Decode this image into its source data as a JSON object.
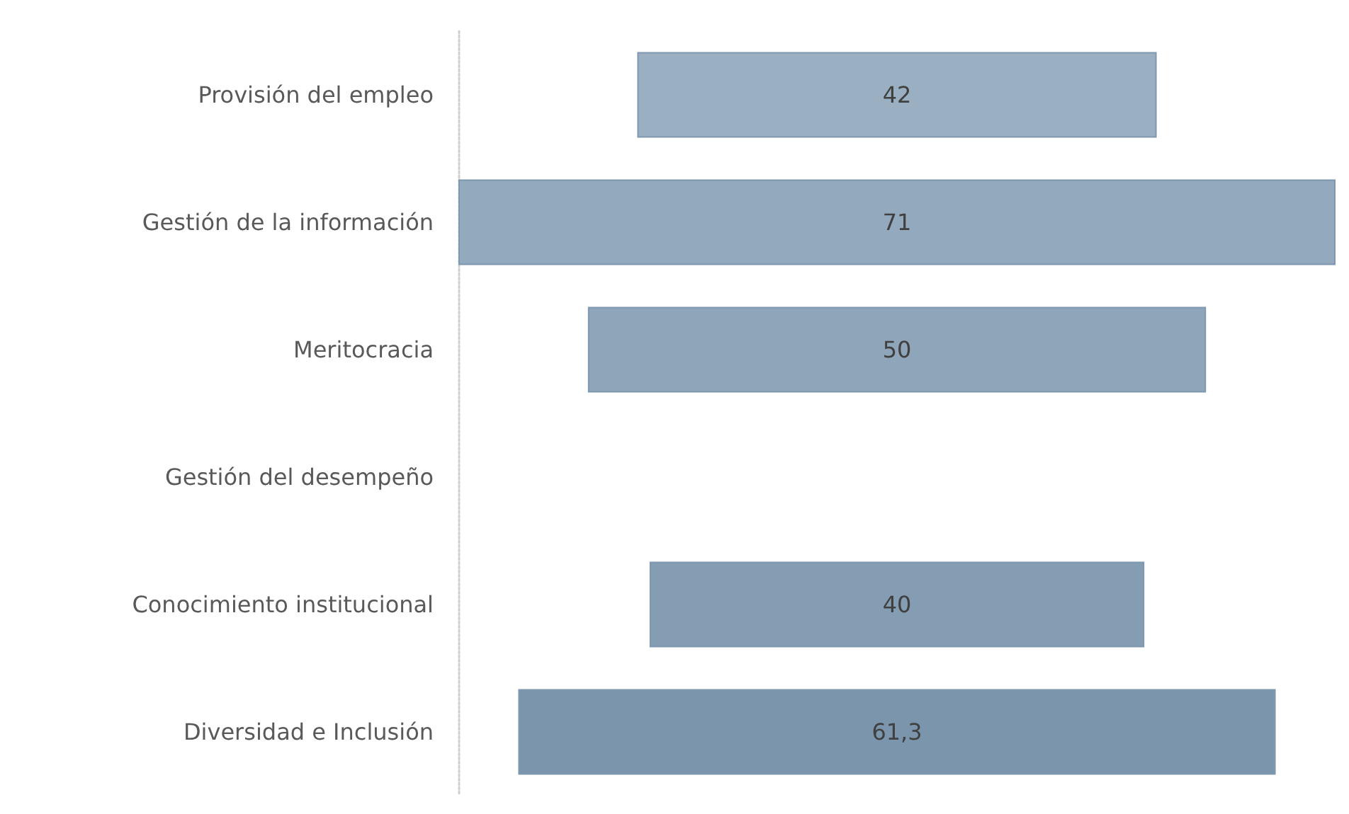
{
  "chart_data": {
    "type": "other",
    "categories": [
      "Provisión del empleo",
      "Gestión de la información",
      "Meritocracia",
      "Gestión del desempeño",
      "Conocimiento institucional",
      "Diversidad e Inclusión"
    ],
    "values": [
      42,
      71,
      50,
      null,
      40,
      61.3
    ],
    "value_labels": [
      "42",
      "71",
      "50",
      null,
      "40",
      "61,3"
    ],
    "colors": [
      "#9aafc2",
      "#93a9bd",
      "#8ea5ba",
      null,
      "#859db3",
      "#7b95ad"
    ]
  }
}
